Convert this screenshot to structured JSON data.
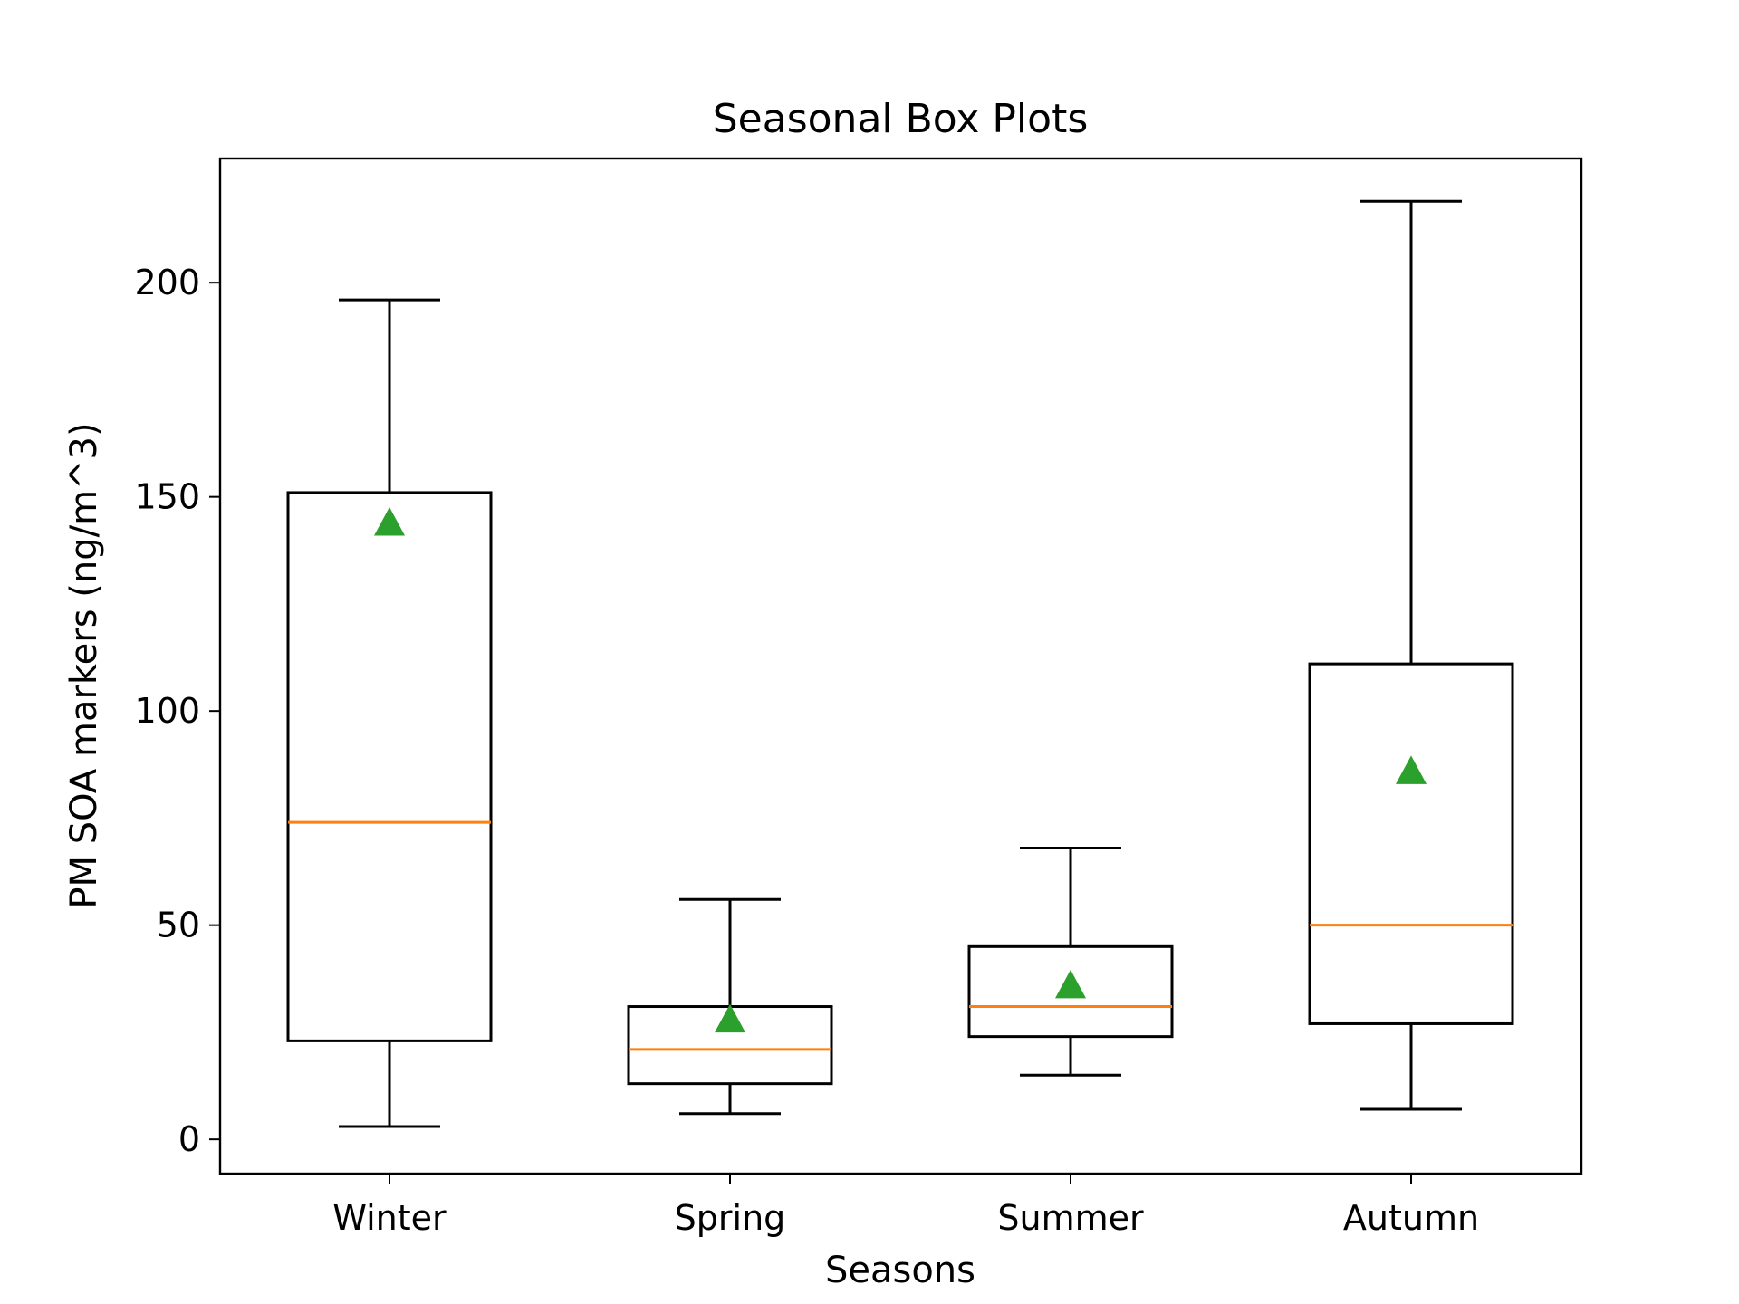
{
  "chart_data": {
    "type": "box",
    "title": "Seasonal Box Plots",
    "xlabel": "Seasons",
    "ylabel": "PM SOA markers (ng/m^3)",
    "categories": [
      "Winter",
      "Spring",
      "Summer",
      "Autumn"
    ],
    "yticks": [
      0,
      50,
      100,
      150,
      200
    ],
    "ylim": [
      -8,
      229
    ],
    "grid": false,
    "boxes": [
      {
        "category": "Winter",
        "whisker_low": 3,
        "q1": 23,
        "median": 74,
        "q3": 151,
        "whisker_high": 196,
        "mean": 144
      },
      {
        "category": "Spring",
        "whisker_low": 6,
        "q1": 13,
        "median": 21,
        "q3": 31,
        "whisker_high": 56,
        "mean": 28
      },
      {
        "category": "Summer",
        "whisker_low": 15,
        "q1": 24,
        "median": 31,
        "q3": 45,
        "whisker_high": 68,
        "mean": 36
      },
      {
        "category": "Autumn",
        "whisker_low": 7,
        "q1": 27,
        "median": 50,
        "q3": 111,
        "whisker_high": 219,
        "mean": 86
      }
    ],
    "colors": {
      "box": "#000000",
      "median": "#ff7f0e",
      "mean": "#2ca02c"
    }
  }
}
